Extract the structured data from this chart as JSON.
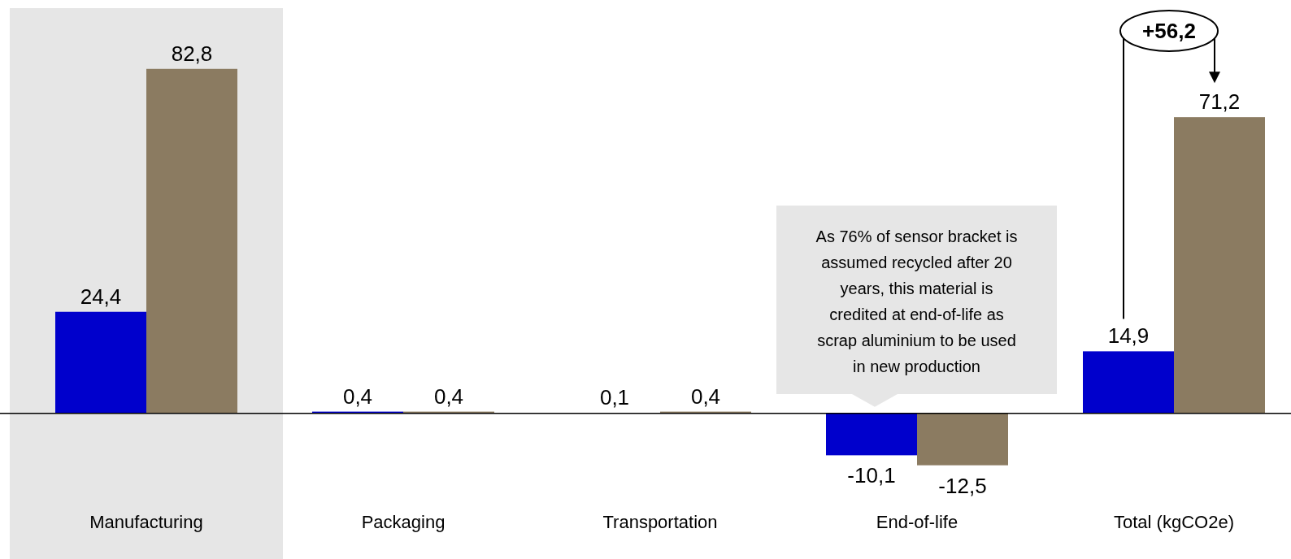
{
  "chart_data": {
    "type": "bar",
    "categories": [
      "Manufacturing",
      "Packaging",
      "Transportation",
      "End-of-life",
      "Total (kgCO2e)"
    ],
    "series": [
      {
        "color": "#0000cc",
        "values": [
          24.4,
          0.4,
          0.1,
          -10.1,
          14.9
        ],
        "value_labels": [
          "24,4",
          "0,4",
          "0,1",
          "-10,1",
          "14,9"
        ]
      },
      {
        "color": "#8b7b61",
        "values": [
          82.8,
          0.4,
          0.4,
          -12.5,
          71.2
        ],
        "value_labels": [
          "82,8",
          "0,4",
          "0,4",
          "-12,5",
          "71,2"
        ]
      }
    ],
    "bands": [
      {
        "axis": "x",
        "from": "Manufacturing",
        "to": "Manufacturing",
        "color": "#e6e6e6"
      }
    ],
    "annotations": [
      "As 76% of sensor bracket is assumed recycled after 20 years, this material is credited at end-of-life as scrap aluminium to be used in new production",
      "+56,2"
    ],
    "grid": false
  }
}
